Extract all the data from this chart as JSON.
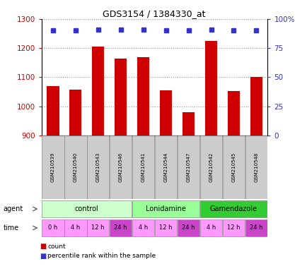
{
  "title": "GDS3154 / 1384330_at",
  "samples": [
    "GSM210539",
    "GSM210540",
    "GSM210543",
    "GSM210546",
    "GSM210541",
    "GSM210544",
    "GSM210547",
    "GSM210542",
    "GSM210545",
    "GSM210548"
  ],
  "counts": [
    1070,
    1057,
    1205,
    1163,
    1168,
    1055,
    980,
    1225,
    1052,
    1100
  ],
  "percentile_ranks": [
    90,
    90,
    91,
    91,
    91,
    90,
    90,
    91,
    90,
    90
  ],
  "ylim_left": [
    900,
    1300
  ],
  "ylim_right": [
    0,
    100
  ],
  "yticks_left": [
    900,
    1000,
    1100,
    1200,
    1300
  ],
  "yticks_right": [
    0,
    25,
    50,
    75,
    100
  ],
  "ytick_labels_right": [
    "0",
    "25",
    "50",
    "75",
    "100%"
  ],
  "bar_color": "#cc0000",
  "dot_color": "#3333cc",
  "agent_groups": [
    {
      "label": "control",
      "start": 0,
      "end": 3,
      "color": "#ccffcc"
    },
    {
      "label": "Lonidamine",
      "start": 4,
      "end": 6,
      "color": "#99ff99"
    },
    {
      "label": "Gamendazole",
      "start": 7,
      "end": 9,
      "color": "#33cc33"
    }
  ],
  "times": [
    "0 h",
    "4 h",
    "12 h",
    "24 h",
    "4 h",
    "12 h",
    "24 h",
    "4 h",
    "12 h",
    "24 h"
  ],
  "time_color_light": "#ff99ff",
  "time_color_dark": "#cc44cc",
  "time_dark_indices": [
    3,
    6,
    9
  ],
  "sample_box_color": "#cccccc",
  "grid_color": "#999999",
  "bar_width": 0.55
}
